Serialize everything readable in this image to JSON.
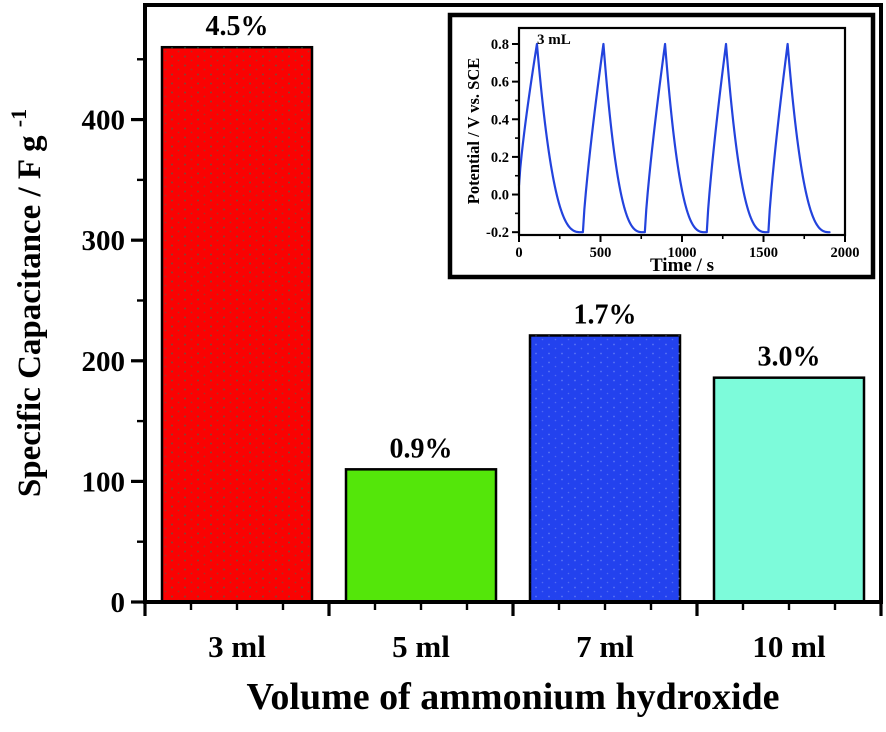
{
  "figure": {
    "background": "#ffffff",
    "axis_color": "#000000"
  },
  "chart_data": [
    {
      "id": "main-bar-chart",
      "type": "bar",
      "xlabel": "Volume of ammonium hydroxide",
      "ylabel": {
        "text": "Specific Capacitance / F g",
        "sup": "-1"
      },
      "categories": [
        "3 ml",
        "5 ml",
        "7 ml",
        "10 ml"
      ],
      "values": [
        460,
        110,
        221,
        186
      ],
      "bar_labels": [
        "4.5%",
        "0.9%",
        "1.7%",
        "3.0%"
      ],
      "bar_colors": [
        "#fa0202",
        "#54e60a",
        "#2342ee",
        "#7dfbda"
      ],
      "bar_edge_color": "#000000",
      "ylim": [
        0,
        495
      ],
      "y_major_ticks": {
        "values": [
          0,
          100,
          200,
          300,
          400
        ],
        "labels": [
          "0",
          "100",
          "200",
          "300",
          "400"
        ]
      },
      "y_minor_ticks": [
        50,
        150,
        250,
        350,
        450
      ],
      "x_minor_divisions": 4,
      "grid": false,
      "legend": null
    },
    {
      "id": "inset-gcd-chart",
      "type": "line",
      "annotation": "3 mL",
      "xlabel": "Time / s",
      "ylabel": "Potential / V vs. SCE",
      "xlim": [
        0,
        2000
      ],
      "ylim": [
        -0.215,
        0.885
      ],
      "x_major_ticks": {
        "values": [
          0,
          500,
          1000,
          1500,
          2000
        ],
        "labels": [
          "0",
          "500",
          "1000",
          "1500",
          "2000"
        ]
      },
      "x_minor_ticks": [
        250,
        750,
        1250,
        1750
      ],
      "y_major_ticks": {
        "values": [
          -0.2,
          0.0,
          0.2,
          0.4,
          0.6,
          0.8
        ],
        "labels": [
          "-0.2",
          "0.0",
          "0.2",
          "0.4",
          "0.6",
          "0.8"
        ]
      },
      "y_minor_ticks": [
        -0.1,
        0.1,
        0.3,
        0.5,
        0.7
      ],
      "line_color": "#2343dd",
      "v_peak": 0.8,
      "v_min": -0.2,
      "charge_shape_exponent": 0.8,
      "discharge_shape_exponent": 2.7,
      "cycles": [
        {
          "charge_start": 0,
          "v_start": 0.05,
          "peak": 110,
          "discharge_end": 380
        },
        {
          "charge_start": 392,
          "v_start": -0.2,
          "peak": 518,
          "discharge_end": 760
        },
        {
          "charge_start": 772,
          "v_start": -0.2,
          "peak": 896,
          "discharge_end": 1140
        },
        {
          "charge_start": 1152,
          "v_start": -0.2,
          "peak": 1270,
          "discharge_end": 1518
        },
        {
          "charge_start": 1530,
          "v_start": -0.2,
          "peak": 1648,
          "discharge_end": 1905
        }
      ],
      "grid": false
    }
  ]
}
